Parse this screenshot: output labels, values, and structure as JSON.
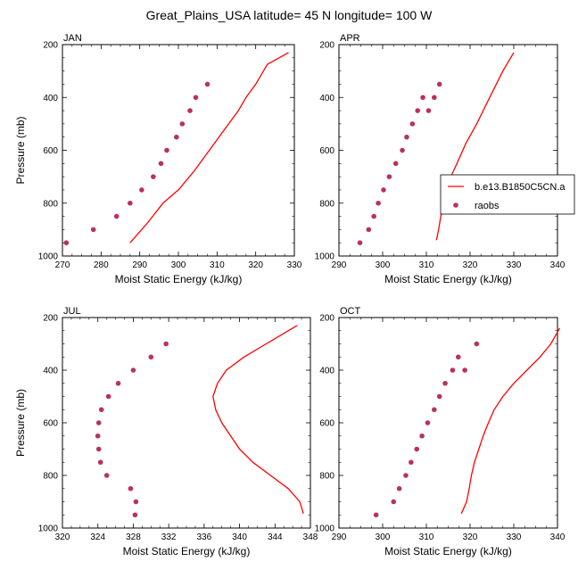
{
  "figure_title": "Great_Plains_USA  latitude= 45 N longitude= 100 W",
  "colors": {
    "model_line": "#ff0000",
    "obs_marker": "#b8325a",
    "axes": "#000000"
  },
  "legend": {
    "items": [
      "b.e13.B1850C5CN.a",
      "raobs"
    ]
  },
  "chart_data": [
    {
      "type": "line",
      "title": "JAN",
      "xlabel": "Moist Static Energy (kJ/kg)",
      "ylabel": "Pressure (mb)",
      "xlim": [
        270,
        330
      ],
      "ylim": [
        200,
        1000
      ],
      "y_inverted": true,
      "xticks": [
        270,
        280,
        290,
        300,
        310,
        320,
        330
      ],
      "yticks": [
        200,
        400,
        600,
        800,
        1000
      ],
      "series": [
        {
          "name": "b.e13.B1850C5CN.a",
          "kind": "line",
          "x": [
            287.5,
            289,
            292,
            296,
            300,
            304,
            308,
            312,
            315.5,
            317.5,
            320,
            323,
            328.5
          ],
          "y": [
            950,
            925,
            875,
            800,
            750,
            680,
            600,
            520,
            450,
            400,
            350,
            275,
            230
          ]
        },
        {
          "name": "raobs",
          "kind": "scatter",
          "x": [
            271,
            278,
            284,
            287.5,
            290.5,
            293.5,
            295.5,
            297,
            299.5,
            301,
            303,
            304.5,
            307.5
          ],
          "y": [
            950,
            900,
            850,
            800,
            750,
            700,
            650,
            600,
            550,
            500,
            450,
            400,
            350
          ]
        }
      ]
    },
    {
      "type": "line",
      "title": "APR",
      "xlabel": "Moist Static Energy (kJ/kg)",
      "ylabel": "",
      "xlim": [
        290,
        340
      ],
      "ylim": [
        200,
        1000
      ],
      "y_inverted": true,
      "xticks": [
        290,
        300,
        310,
        320,
        330,
        340
      ],
      "yticks": [
        200,
        400,
        600,
        800,
        1000
      ],
      "series": [
        {
          "name": "b.e13.B1850C5CN.a",
          "kind": "line",
          "x": [
            312.3,
            312.8,
            313.3,
            313.9,
            314.7,
            315.6,
            317,
            319,
            321.5,
            324.5,
            327.5,
            330
          ],
          "y": [
            940,
            900,
            850,
            800,
            750,
            700,
            650,
            575,
            500,
            400,
            300,
            230
          ]
        },
        {
          "name": "raobs",
          "kind": "scatter",
          "x": [
            294.8,
            296.8,
            298,
            299,
            300.2,
            301.5,
            303,
            304.5,
            305.5,
            306.8,
            308,
            309.2,
            310.5,
            311.8,
            313
          ],
          "y": [
            950,
            900,
            850,
            800,
            750,
            700,
            650,
            600,
            550,
            500,
            450,
            400,
            450,
            400,
            350
          ]
        }
      ]
    },
    {
      "type": "line",
      "title": "JUL",
      "xlabel": "Moist Static Energy (kJ/kg)",
      "ylabel": "Pressure (mb)",
      "xlim": [
        320,
        348
      ],
      "ylim": [
        200,
        1000
      ],
      "y_inverted": true,
      "xticks": [
        320,
        324,
        328,
        332,
        336,
        340,
        344,
        348
      ],
      "yticks": [
        200,
        400,
        600,
        800,
        1000
      ],
      "series": [
        {
          "name": "b.e13.B1850C5CN.a",
          "kind": "line",
          "x": [
            347.2,
            346.8,
            345.5,
            343.5,
            341.5,
            340,
            339,
            338,
            337.3,
            337,
            337.5,
            338.5,
            340.5,
            343,
            346.5
          ],
          "y": [
            945,
            900,
            850,
            800,
            750,
            700,
            650,
            600,
            550,
            500,
            450,
            400,
            350,
            300,
            230
          ]
        },
        {
          "name": "raobs",
          "kind": "scatter",
          "x": [
            328.2,
            328.3,
            327.7,
            325,
            324.3,
            324.1,
            324,
            324.1,
            324.4,
            325.2,
            326.3,
            328,
            330,
            331.7
          ],
          "y": [
            950,
            900,
            850,
            800,
            750,
            700,
            650,
            600,
            550,
            500,
            450,
            400,
            350,
            300
          ]
        }
      ]
    },
    {
      "type": "line",
      "title": "OCT",
      "xlabel": "Moist Static Energy (kJ/kg)",
      "ylabel": "",
      "xlim": [
        290,
        340
      ],
      "ylim": [
        200,
        1000
      ],
      "y_inverted": true,
      "xticks": [
        290,
        300,
        310,
        320,
        330,
        340
      ],
      "yticks": [
        200,
        400,
        600,
        800,
        1000
      ],
      "series": [
        {
          "name": "b.e13.B1850C5CN.a",
          "kind": "line",
          "x": [
            318,
            319.2,
            319.8,
            320.3,
            321,
            322,
            323,
            324.2,
            325.5,
            327.5,
            330,
            333,
            336,
            338.5,
            340.5
          ],
          "y": [
            945,
            900,
            850,
            800,
            750,
            700,
            650,
            600,
            550,
            500,
            450,
            400,
            350,
            300,
            240
          ]
        },
        {
          "name": "raobs",
          "kind": "scatter",
          "x": [
            298.5,
            302.5,
            303.8,
            305.3,
            306.5,
            307.8,
            309,
            310.3,
            311.8,
            313,
            314.3,
            316,
            317.3,
            318.8,
            321.5
          ],
          "y": [
            950,
            900,
            850,
            800,
            750,
            700,
            650,
            600,
            550,
            500,
            450,
            400,
            350,
            400,
            300
          ]
        }
      ]
    }
  ]
}
